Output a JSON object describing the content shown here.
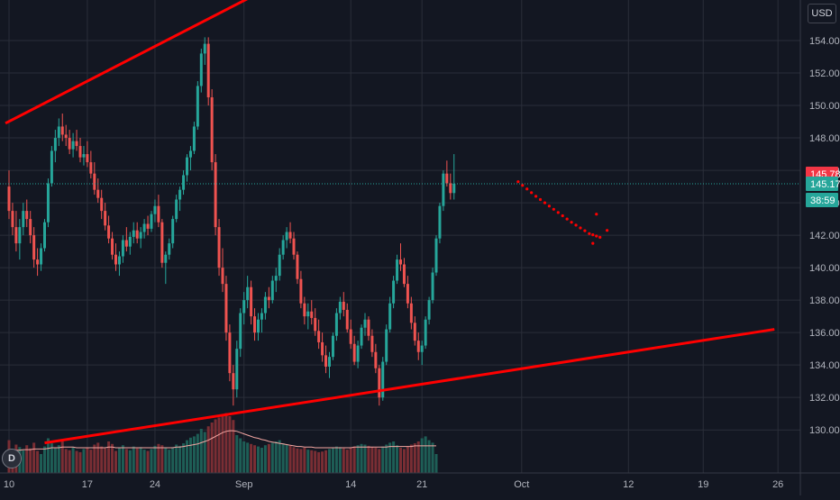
{
  "currency": "USD",
  "interval_badge": "D",
  "price_labels": {
    "prev_close": {
      "text": "145.78",
      "value": 145.78,
      "color": "#f23645"
    },
    "last_price": {
      "text": "145.17",
      "value": 145.17,
      "color": "#26a69a"
    },
    "countdown": {
      "text": "38:59",
      "color": "#26a69a"
    }
  },
  "chart_data": {
    "type": "candlestick",
    "y_ticks": [
      130,
      132,
      134,
      136,
      138,
      140,
      142,
      144,
      146,
      148,
      150,
      152,
      154
    ],
    "y_tick_labels": [
      "130.00",
      "132.00",
      "134.00",
      "136.00",
      "138.00",
      "140.00",
      "142.00",
      "144.00",
      "146.00",
      "148.00",
      "150.00",
      "152.00",
      "154.00"
    ],
    "ylim": [
      128.9,
      155.5
    ],
    "x_tick_labels": [
      "10",
      "17",
      "24",
      "Sep",
      "14",
      "21",
      "Oct",
      "12",
      "19",
      "26"
    ],
    "x_tick_index": [
      0,
      22,
      41,
      66,
      96,
      116,
      144,
      174,
      195,
      216
    ],
    "colors": {
      "up": "#26a69a",
      "down": "#ef5350",
      "up_volume": "#1e5e56",
      "down_volume": "#7a2e34",
      "drawing": "#ff0000",
      "volume_ma": "#f4a7a3"
    },
    "bars": [
      [
        145,
        146,
        143,
        143.5
      ],
      [
        143.5,
        144,
        142,
        142.5
      ],
      [
        142.5,
        143.5,
        141,
        141.5
      ],
      [
        141.5,
        143,
        140.5,
        142.5
      ],
      [
        142.5,
        144,
        142,
        143.5
      ],
      [
        143.5,
        144.2,
        142.5,
        143
      ],
      [
        143,
        143.5,
        141.5,
        142
      ],
      [
        142,
        142.5,
        140,
        140.5
      ],
      [
        140.5,
        141.2,
        139.5,
        140.2
      ],
      [
        140.2,
        141.5,
        139.8,
        141.2
      ],
      [
        141.2,
        143,
        141,
        142.8
      ],
      [
        142.8,
        145.5,
        142.5,
        145.2
      ],
      [
        145.2,
        147.5,
        145,
        147.2
      ],
      [
        147.2,
        148.5,
        146.5,
        148
      ],
      [
        148,
        149.2,
        147.5,
        148.7
      ],
      [
        148.7,
        149.5,
        147.8,
        148.2
      ],
      [
        148.2,
        148.8,
        147.5,
        148
      ],
      [
        148,
        148.5,
        147,
        147.3
      ],
      [
        147.3,
        148.3,
        146.8,
        147.8
      ],
      [
        147.8,
        148.5,
        147.2,
        147.5
      ],
      [
        147.5,
        148,
        146.5,
        146.8
      ],
      [
        146.8,
        147.5,
        146.3,
        147
      ],
      [
        147,
        147.8,
        146.2,
        146.5
      ],
      [
        146.5,
        147.2,
        145.5,
        145.8
      ],
      [
        145.8,
        146.5,
        144.5,
        144.8
      ],
      [
        144.8,
        145.5,
        144,
        144.3
      ],
      [
        144.3,
        144.8,
        143,
        143.5
      ],
      [
        143.5,
        144,
        142.3,
        142.6
      ],
      [
        142.6,
        143.2,
        141.5,
        141.8
      ],
      [
        141.8,
        142.2,
        140.5,
        140.8
      ],
      [
        140.8,
        141.5,
        139.8,
        140.2
      ],
      [
        140.2,
        141,
        139.5,
        140.7
      ],
      [
        140.7,
        142,
        140.3,
        141.7
      ],
      [
        141.7,
        142.5,
        141,
        141.3
      ],
      [
        141.3,
        142.2,
        140.8,
        141.9
      ],
      [
        141.9,
        142.8,
        141.5,
        142.3
      ],
      [
        142.3,
        142.8,
        141.5,
        141.8
      ],
      [
        141.8,
        142.5,
        141.2,
        142.2
      ],
      [
        142.2,
        143,
        141.8,
        142.7
      ],
      [
        142.7,
        143.2,
        142,
        142.4
      ],
      [
        142.4,
        143.5,
        142.2,
        143.3
      ],
      [
        143.3,
        144.2,
        142.8,
        143.8
      ],
      [
        143.8,
        144.5,
        142.5,
        142.8
      ],
      [
        142.8,
        143,
        140,
        140.3
      ],
      [
        140.3,
        141,
        139,
        140.8
      ],
      [
        140.8,
        141.8,
        140.5,
        141.5
      ],
      [
        141.5,
        143.2,
        141.2,
        143
      ],
      [
        143,
        144.5,
        142.8,
        144.2
      ],
      [
        144.2,
        145,
        143.5,
        144.8
      ],
      [
        144.8,
        146,
        144.5,
        145.7
      ],
      [
        145.7,
        147,
        145.3,
        146.8
      ],
      [
        146.8,
        147.5,
        146,
        147.2
      ],
      [
        147.2,
        149,
        147,
        148.7
      ],
      [
        148.7,
        151.5,
        148.5,
        151.2
      ],
      [
        151.2,
        153.5,
        150.8,
        153.2
      ],
      [
        153.2,
        154.2,
        152.5,
        153.8
      ],
      [
        153.8,
        154.2,
        150,
        150.5
      ],
      [
        150.5,
        151,
        146,
        146.5
      ],
      [
        146.5,
        147,
        142,
        142.5
      ],
      [
        142.5,
        143,
        139.5,
        140
      ],
      [
        140,
        141.2,
        138.5,
        139
      ],
      [
        139,
        139.5,
        135.5,
        136
      ],
      [
        136,
        136.5,
        133,
        133.5
      ],
      [
        133.5,
        134,
        131.5,
        132.5
      ],
      [
        132.5,
        135.5,
        132,
        135
      ],
      [
        135,
        137.5,
        134.5,
        137.2
      ],
      [
        137.2,
        138.5,
        136.5,
        138
      ],
      [
        138,
        139.5,
        137.5,
        138.8
      ],
      [
        138.8,
        139.2,
        136.5,
        137
      ],
      [
        137,
        137.5,
        135.5,
        136
      ],
      [
        136,
        137.2,
        135.5,
        136.8
      ],
      [
        136.8,
        137.5,
        136,
        137.2
      ],
      [
        137.2,
        138.5,
        136.8,
        138.2
      ],
      [
        138.2,
        138.8,
        137.5,
        138
      ],
      [
        138,
        139.5,
        137.8,
        139.2
      ],
      [
        139.2,
        140,
        138.5,
        139.5
      ],
      [
        139.5,
        141.2,
        139.2,
        140.8
      ],
      [
        140.8,
        142,
        140.5,
        141.7
      ],
      [
        141.7,
        142.5,
        141.2,
        142.2
      ],
      [
        142.2,
        142.8,
        141.5,
        141.8
      ],
      [
        141.8,
        142.2,
        140.5,
        140.8
      ],
      [
        140.8,
        141,
        139,
        139.3
      ],
      [
        139.3,
        139.8,
        137.5,
        137.8
      ],
      [
        137.8,
        138.2,
        136.5,
        137
      ],
      [
        137,
        137.8,
        136.2,
        137.3
      ],
      [
        137.3,
        138,
        136.5,
        136.9
      ],
      [
        136.9,
        137.5,
        135.8,
        136.1
      ],
      [
        136.1,
        136.8,
        135,
        135.4
      ],
      [
        135.4,
        136,
        134.2,
        134.6
      ],
      [
        134.6,
        135.2,
        133.5,
        133.9
      ],
      [
        133.9,
        134.8,
        133.2,
        134.5
      ],
      [
        134.5,
        136,
        134.3,
        135.8
      ],
      [
        135.8,
        137.5,
        135.5,
        137.2
      ],
      [
        137.2,
        138.2,
        136.8,
        137.9
      ],
      [
        137.9,
        138.5,
        137,
        137.4
      ],
      [
        137.4,
        137.8,
        136,
        136.2
      ],
      [
        136.2,
        136.8,
        135,
        135.3
      ],
      [
        135.3,
        135.8,
        134,
        134.2
      ],
      [
        134.2,
        135.5,
        133.8,
        135.2
      ],
      [
        135.2,
        136.5,
        135,
        136.3
      ]
    ],
    "bars_2": [
      [
        136.3,
        137.2,
        135.8,
        136.8
      ],
      [
        136.8,
        137,
        135.5,
        135.8
      ],
      [
        135.8,
        136.2,
        134.5,
        134.8
      ],
      [
        134.8,
        135.3,
        133.5,
        133.8
      ],
      [
        133.8,
        134,
        131.5,
        132
      ],
      [
        132,
        134.5,
        131.8,
        134.2
      ],
      [
        134.2,
        136.5,
        134,
        136.2
      ],
      [
        136.2,
        138.2,
        136,
        137.8
      ],
      [
        137.8,
        139.5,
        137.5,
        139.2
      ],
      [
        139.2,
        140.8,
        139,
        140.5
      ],
      [
        140.5,
        141.5,
        139.8,
        140.2
      ],
      [
        140.2,
        140.6,
        138.8,
        139
      ],
      [
        139,
        139.5,
        137.5,
        137.8
      ],
      [
        137.8,
        138.2,
        136.2,
        136.6
      ],
      [
        136.6,
        137,
        135.2,
        135.5
      ],
      [
        135.5,
        136,
        134.3,
        134.8
      ],
      [
        134.8,
        135.5,
        134,
        135.2
      ],
      [
        135.2,
        137,
        135,
        136.8
      ],
      [
        136.8,
        138.2,
        136.5,
        138
      ],
      [
        138,
        140,
        137.8,
        139.7
      ],
      [
        139.7,
        142,
        139.5,
        141.8
      ],
      [
        141.8,
        144,
        141.5,
        143.8
      ],
      [
        143.8,
        146,
        143.5,
        145.8
      ],
      [
        145.8,
        146.6,
        145,
        145.2
      ],
      [
        145.2,
        145.8,
        144.2,
        144.6
      ],
      [
        144.6,
        147,
        144.2,
        145.17
      ]
    ],
    "volume_scale": [
      0,
      100
    ],
    "volumes": [
      52,
      38,
      45,
      41,
      36,
      44,
      39,
      48,
      35,
      30,
      42,
      55,
      47,
      40,
      44,
      50,
      38,
      36,
      41,
      35,
      33,
      38,
      40,
      37,
      45,
      48,
      42,
      39,
      50,
      46,
      35,
      40,
      44,
      38,
      36,
      42,
      39,
      41,
      37,
      35,
      38,
      43,
      46,
      44,
      40,
      37,
      41,
      45,
      43,
      47,
      52,
      56,
      58,
      62,
      70,
      65,
      74,
      80,
      85,
      88,
      92,
      95,
      90,
      84,
      60,
      55,
      50,
      48,
      46,
      44,
      42,
      40,
      44,
      46,
      48,
      50,
      52,
      47,
      45,
      43,
      41,
      39,
      38,
      40,
      37,
      36,
      35,
      33,
      34,
      36,
      38,
      40,
      42,
      41,
      39,
      37,
      40,
      42,
      44,
      46,
      45,
      43,
      41,
      40,
      38,
      42,
      45,
      48,
      50,
      44,
      40,
      38,
      42,
      45,
      47,
      50,
      55,
      58,
      52,
      48,
      30
    ],
    "volume_ma": [
      34,
      35,
      36,
      36,
      37,
      37,
      37,
      38,
      38,
      38,
      38,
      39,
      40,
      40,
      40,
      41,
      41,
      41,
      41,
      40,
      40,
      40,
      40,
      40,
      40,
      40,
      40,
      40,
      41,
      41,
      40,
      40,
      40,
      40,
      40,
      40,
      40,
      40,
      40,
      40,
      40,
      40,
      40,
      40,
      40,
      40,
      40,
      41,
      41,
      42,
      43,
      44,
      45,
      46,
      48,
      50,
      52,
      55,
      58,
      61,
      64,
      66,
      67,
      67,
      66,
      64,
      62,
      60,
      58,
      56,
      55,
      53,
      52,
      50,
      49,
      48,
      47,
      46,
      45,
      44,
      43,
      42,
      42,
      41,
      41,
      41,
      40,
      40,
      40,
      40,
      40,
      40,
      40,
      40,
      40,
      40,
      40,
      41,
      41,
      41,
      41,
      41,
      41,
      41,
      41,
      41,
      41,
      42,
      42,
      42,
      42,
      42,
      42,
      42,
      43,
      43,
      43,
      43,
      43,
      43,
      43
    ],
    "drawings": {
      "upper_line": [
        [
          -1,
          148.9
        ],
        [
          115,
          162
        ]
      ],
      "lower_line": [
        [
          10,
          129.2
        ],
        [
          215,
          136.2
        ]
      ],
      "projection_dots": [
        [
          143,
          145.3
        ],
        [
          148,
          144.4
        ],
        [
          153,
          143.6
        ],
        [
          158,
          142.8
        ],
        [
          163,
          142.1
        ],
        [
          167,
          141.8
        ],
        [
          165,
          143.3
        ],
        [
          168,
          142.3
        ],
        [
          164,
          141.5
        ]
      ]
    }
  }
}
